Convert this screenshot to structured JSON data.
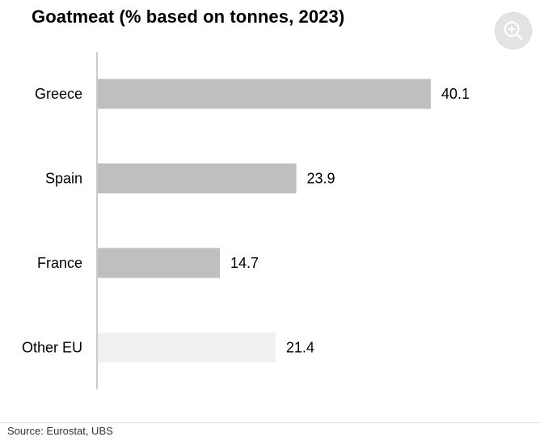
{
  "header": {
    "title": "Goatmeat (% based on tonnes, 2023)",
    "zoom_icon": "zoom-in-icon"
  },
  "chart_data": {
    "type": "bar",
    "orientation": "horizontal",
    "title": "Goatmeat (% based on tonnes, 2023)",
    "categories": [
      "Greece",
      "Spain",
      "France",
      "Other EU"
    ],
    "values": [
      40.1,
      23.9,
      14.7,
      21.4
    ],
    "data_labels": [
      "40.1",
      "23.9",
      "14.7",
      "21.4"
    ],
    "xlim": [
      0,
      44
    ],
    "grid": false,
    "legend": "none",
    "colors": {
      "bar": "#bfbfbf",
      "bar_other": "#f0f0f0",
      "axis": "#bbbbbb",
      "text": "#000000"
    },
    "bar_colors": [
      "#bfbfbf",
      "#bfbfbf",
      "#bfbfbf",
      "#f0f0f0"
    ]
  },
  "footer": {
    "source": "Source: Eurostat, UBS"
  }
}
